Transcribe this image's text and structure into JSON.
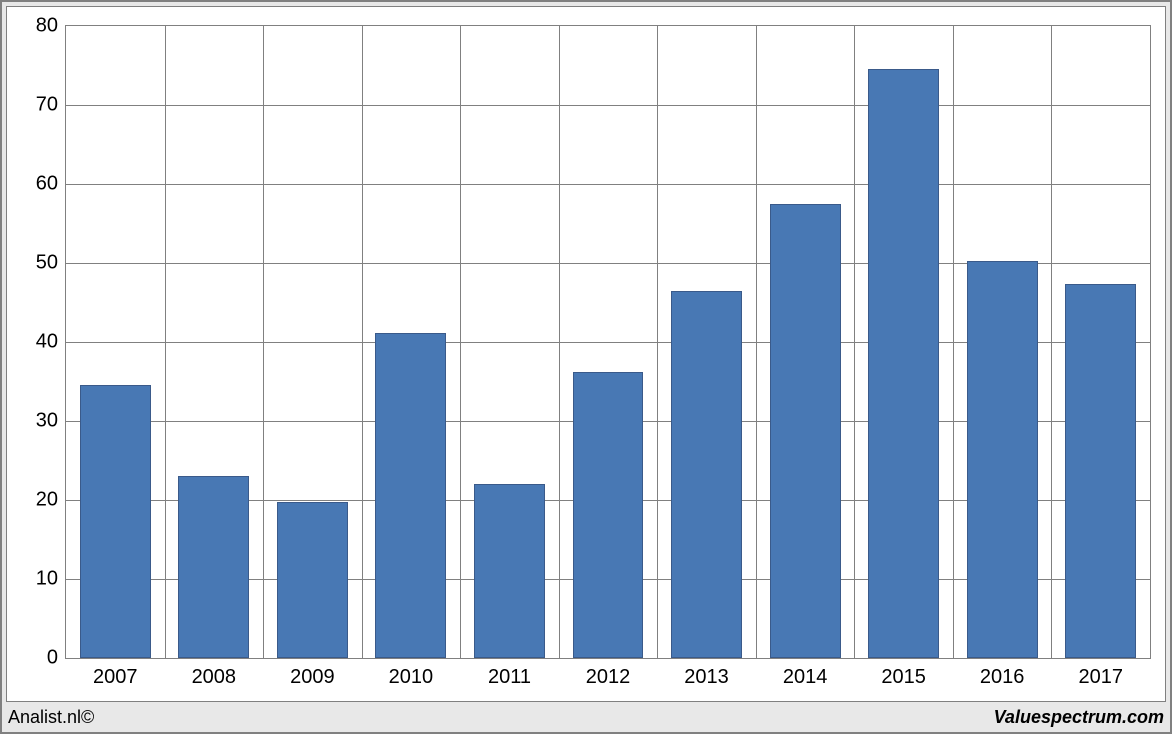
{
  "chart": {
    "type": "bar",
    "categories": [
      "2007",
      "2008",
      "2009",
      "2010",
      "2011",
      "2012",
      "2013",
      "2014",
      "2015",
      "2016",
      "2017"
    ],
    "values": [
      34.5,
      23.0,
      19.7,
      41.2,
      22.0,
      36.2,
      46.5,
      57.5,
      74.5,
      50.2,
      47.3
    ],
    "bar_color": "#4878b4",
    "bar_border_color": "#3a5a8a",
    "background_color": "#ffffff",
    "frame_background": "#e8e8e8",
    "grid_color": "#808080",
    "ylim": [
      0,
      80
    ],
    "ytick_step": 10,
    "bar_width_ratio": 0.72,
    "tick_fontsize": 20
  },
  "footer": {
    "left": "Analist.nl©",
    "right": "Valuespectrum.com"
  }
}
